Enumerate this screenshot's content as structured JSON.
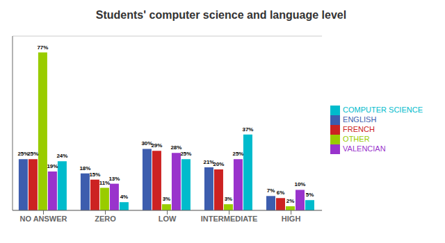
{
  "chart_data": {
    "type": "bar",
    "title": "Students' computer science and language level",
    "categories": [
      "NO ANSWER",
      "ZERO",
      "LOW",
      "INTERMEDIATE",
      "HIGH"
    ],
    "series": [
      {
        "name": "ENGLISH",
        "color": "#3D5DAE",
        "values": [
          25,
          18,
          30,
          21,
          7
        ],
        "value_labels": [
          "25%",
          "18%",
          "30%",
          "21%",
          "7%"
        ]
      },
      {
        "name": "FRENCH",
        "color": "#CC2222",
        "values": [
          25,
          15,
          29,
          20,
          6
        ],
        "value_labels": [
          "25%",
          "15%",
          "29%",
          "20%",
          "6%"
        ]
      },
      {
        "name": "OTHER",
        "color": "#99CC00",
        "values": [
          77,
          11,
          3,
          3,
          2
        ],
        "value_labels": [
          "77%",
          "11%",
          "3%",
          "3%",
          "2%"
        ]
      },
      {
        "name": "VALENCIAN",
        "color": "#9933CC",
        "values": [
          19,
          13,
          28,
          25,
          10
        ],
        "value_labels": [
          "19%",
          "13%",
          "28%",
          "25%",
          "10%"
        ]
      },
      {
        "name": "COMPUTER SCIENCE",
        "color": "#00BBCC",
        "values": [
          24,
          4,
          25,
          37,
          5
        ],
        "value_labels": [
          "24%",
          "4%",
          "25%",
          "37%",
          "5%"
        ]
      }
    ],
    "ylim": [
      0,
      85
    ],
    "yticks": [
      0,
      10,
      20,
      30,
      40,
      50,
      60,
      70,
      80
    ],
    "grid": true,
    "legend": "right",
    "data_labels": true,
    "tick_labels": "x"
  }
}
